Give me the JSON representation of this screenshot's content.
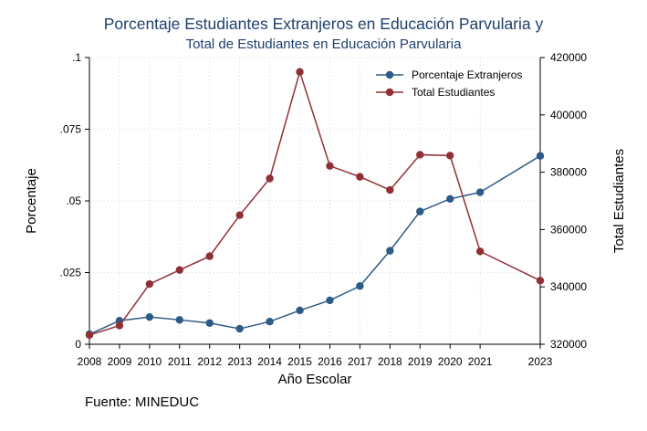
{
  "chart_data": {
    "type": "line",
    "title": "Porcentaje Estudiantes Extranjeros en Educación Parvularia y",
    "subtitle": "Total de Estudiantes en Educación Parvularia",
    "xlabel": "Año Escolar",
    "ylabel_left": "Porcentaje",
    "ylabel_right": "Total Estudiantes",
    "note": "Fuente: MINEDUC",
    "x_ticks": [
      "2008",
      "2009",
      "2010",
      "2011",
      "2012",
      "2013",
      "2014",
      "2015",
      "2016",
      "2017",
      "2018",
      "2019",
      "2020",
      "2021",
      "2023"
    ],
    "ylim_left": [
      0,
      0.1
    ],
    "yticks_left": [
      {
        "value": 0,
        "label": "0"
      },
      {
        "value": 0.025,
        "label": ".025"
      },
      {
        "value": 0.05,
        "label": ".05"
      },
      {
        "value": 0.075,
        "label": ".075"
      },
      {
        "value": 0.1,
        "label": ".1"
      }
    ],
    "ylim_right": [
      320000,
      420000
    ],
    "yticks_right": [
      {
        "value": 320000,
        "label": "320000"
      },
      {
        "value": 340000,
        "label": "340000"
      },
      {
        "value": 360000,
        "label": "360000"
      },
      {
        "value": 380000,
        "label": "380000"
      },
      {
        "value": 400000,
        "label": "400000"
      },
      {
        "value": 420000,
        "label": "420000"
      }
    ],
    "grid": true,
    "legend_position": "top-right",
    "series": [
      {
        "name": "Porcentaje Extranjeros",
        "axis": "left",
        "color": "#2d5a86",
        "points": [
          {
            "x": 2008,
            "y": 0.0035
          },
          {
            "x": 2009,
            "y": 0.0082
          },
          {
            "x": 2010,
            "y": 0.0095
          },
          {
            "x": 2011,
            "y": 0.0085
          },
          {
            "x": 2012,
            "y": 0.0074
          },
          {
            "x": 2013,
            "y": 0.0054
          },
          {
            "x": 2014,
            "y": 0.0079
          },
          {
            "x": 2015,
            "y": 0.0118
          },
          {
            "x": 2016,
            "y": 0.0153
          },
          {
            "x": 2017,
            "y": 0.0203
          },
          {
            "x": 2018,
            "y": 0.0326
          },
          {
            "x": 2019,
            "y": 0.0463
          },
          {
            "x": 2020,
            "y": 0.0507
          },
          {
            "x": 2021,
            "y": 0.053
          },
          {
            "x": 2023,
            "y": 0.0657
          }
        ]
      },
      {
        "name": "Total Estudiantes",
        "axis": "right",
        "color": "#903035",
        "points": [
          {
            "x": 2008,
            "y": 323200
          },
          {
            "x": 2009,
            "y": 326500
          },
          {
            "x": 2010,
            "y": 341000
          },
          {
            "x": 2011,
            "y": 345900
          },
          {
            "x": 2012,
            "y": 350700
          },
          {
            "x": 2013,
            "y": 365000
          },
          {
            "x": 2014,
            "y": 377800
          },
          {
            "x": 2015,
            "y": 415000
          },
          {
            "x": 2016,
            "y": 382200
          },
          {
            "x": 2017,
            "y": 378400
          },
          {
            "x": 2018,
            "y": 373800
          },
          {
            "x": 2019,
            "y": 386100
          },
          {
            "x": 2020,
            "y": 385800
          },
          {
            "x": 2021,
            "y": 352400
          },
          {
            "x": 2023,
            "y": 342200
          }
        ]
      }
    ]
  }
}
